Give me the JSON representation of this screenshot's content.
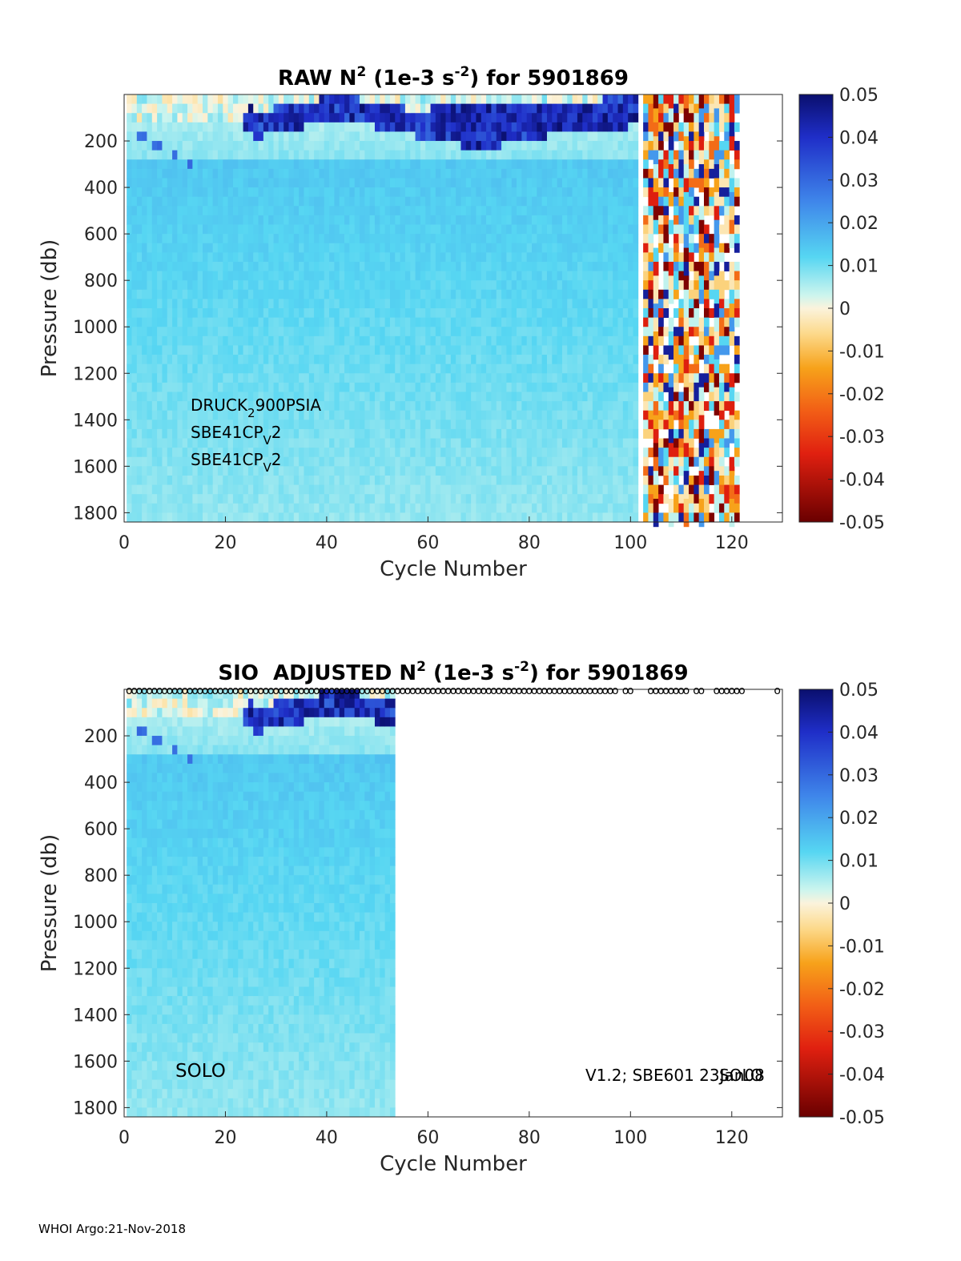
{
  "chart_data": [
    {
      "type": "heatmap",
      "title_prefix": "RAW N",
      "title_sup1": "2",
      "title_mid": " (1e-3 s",
      "title_sup2": "-2",
      "title_suffix": ") for 5901869",
      "xlabel": "Cycle Number",
      "ylabel": "Pressure (db)",
      "xlim": [
        0,
        130
      ],
      "ylim": [
        0,
        1840
      ],
      "xticks": [
        "0",
        "20",
        "40",
        "60",
        "80",
        "100",
        "120"
      ],
      "yticks": [
        "200",
        "400",
        "600",
        "800",
        "1000",
        "1200",
        "1400",
        "1600",
        "1800"
      ],
      "colorbar_ticks": [
        "0.05",
        "0.04",
        "0.03",
        "0.02",
        "0.01",
        "0",
        "-0.01",
        "-0.02",
        "-0.03",
        "-0.04",
        "-0.05"
      ],
      "clim": [
        -0.05,
        0.05
      ],
      "data_cycles_regular": [
        1,
        101
      ],
      "data_cycles_irregular": [
        103,
        121
      ],
      "annotation_lines": [
        {
          "main": "DRUCK",
          "sub": "2",
          "rest": "900PSIA"
        },
        {
          "main": "SBE41CP",
          "sub": "V",
          "rest": "2"
        },
        {
          "main": "SBE41CP",
          "sub": "V",
          "rest": "2"
        }
      ]
    },
    {
      "type": "heatmap",
      "title_prefix": "SIO  ADJUSTED N",
      "title_sup1": "2",
      "title_mid": " (1e-3 s",
      "title_sup2": "-2",
      "title_suffix": ") for 5901869",
      "xlabel": "Cycle Number",
      "ylabel": "Pressure (db)",
      "xlim": [
        0,
        130
      ],
      "ylim": [
        0,
        1840
      ],
      "xticks": [
        "0",
        "20",
        "40",
        "60",
        "80",
        "100",
        "120"
      ],
      "yticks": [
        "200",
        "400",
        "600",
        "800",
        "1000",
        "1200",
        "1400",
        "1600",
        "1800"
      ],
      "colorbar_ticks": [
        "0.05",
        "0.04",
        "0.03",
        "0.02",
        "0.01",
        "0",
        "-0.01",
        "-0.02",
        "-0.03",
        "-0.04",
        "-0.05"
      ],
      "clim": [
        -0.05,
        0.05
      ],
      "data_cycles_regular": [
        1,
        53
      ],
      "profile_marker_glyph": "o",
      "profile_marker_cycles": [
        1,
        2,
        3,
        4,
        5,
        6,
        7,
        8,
        9,
        10,
        11,
        12,
        13,
        14,
        15,
        16,
        17,
        18,
        19,
        20,
        21,
        22,
        23,
        24,
        25,
        26,
        27,
        28,
        29,
        30,
        31,
        32,
        33,
        34,
        35,
        36,
        37,
        38,
        39,
        40,
        41,
        42,
        43,
        44,
        45,
        46,
        47,
        48,
        49,
        50,
        51,
        52,
        53,
        54,
        55,
        56,
        57,
        58,
        59,
        60,
        61,
        62,
        63,
        64,
        65,
        66,
        67,
        68,
        69,
        70,
        71,
        72,
        73,
        74,
        75,
        76,
        77,
        78,
        79,
        80,
        81,
        82,
        83,
        84,
        85,
        86,
        87,
        88,
        89,
        90,
        91,
        92,
        93,
        94,
        95,
        96,
        97,
        99,
        100,
        104,
        105,
        106,
        107,
        108,
        109,
        110,
        111,
        113,
        114,
        117,
        118,
        119,
        120,
        121,
        122,
        129
      ],
      "annotation_left": "SOLO",
      "annotation_right": "V1.2; SBE601 23Jan08",
      "annotation_right_overlap": "SOLO"
    }
  ],
  "footer": "WHOI Argo:21-Nov-2018"
}
